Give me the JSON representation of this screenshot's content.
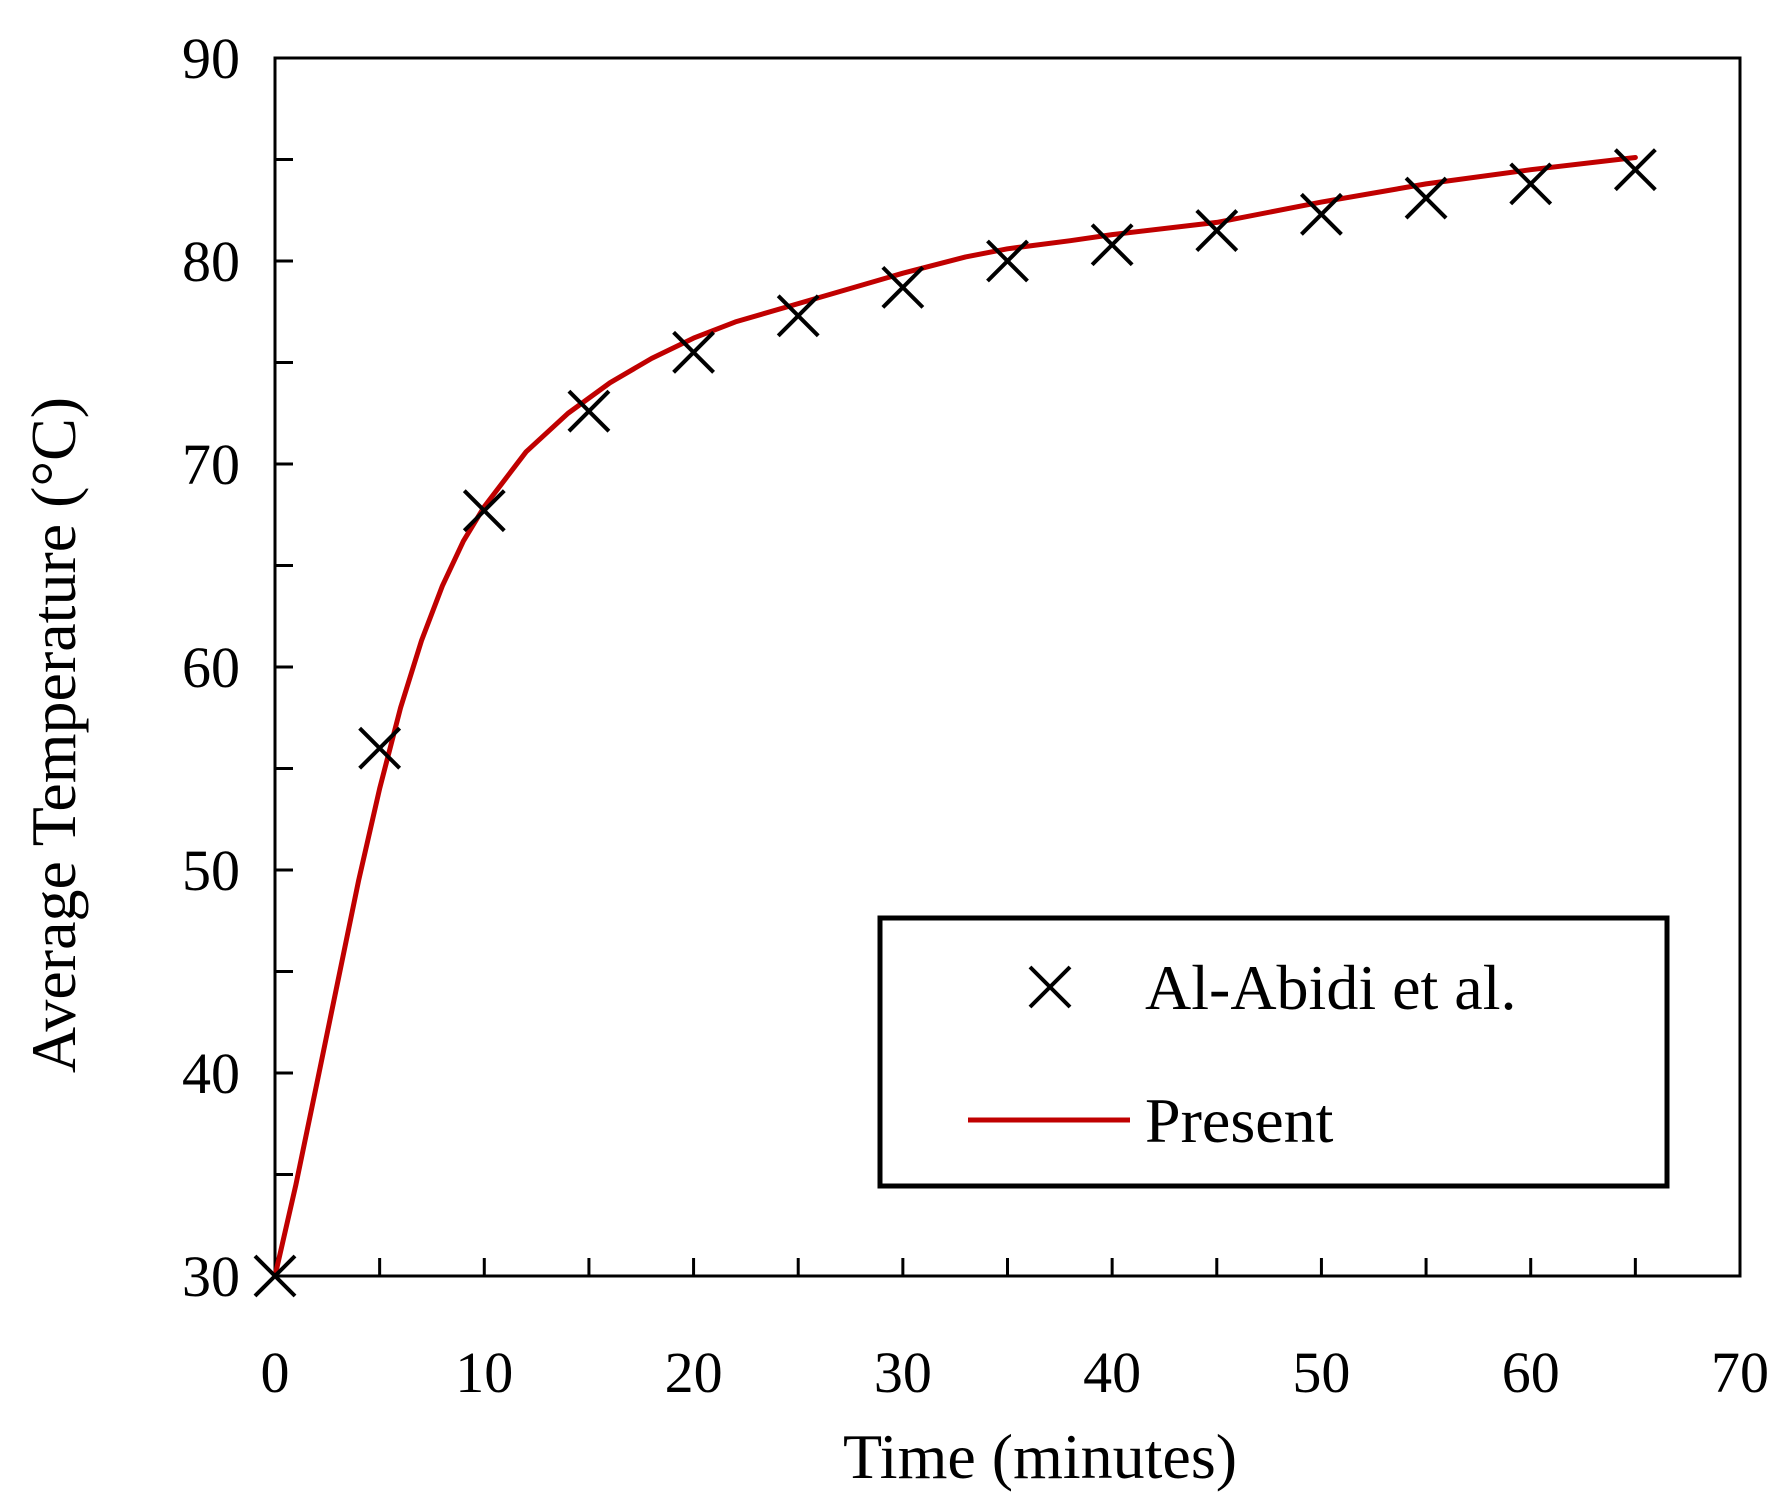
{
  "chart_data": {
    "type": "line",
    "title": "",
    "xlabel": "Time (minutes)",
    "ylabel": "Average Temperature (°C)",
    "xlim": [
      0,
      70
    ],
    "ylim": [
      30,
      90
    ],
    "x_ticks": [
      0,
      10,
      20,
      30,
      40,
      50,
      60,
      70
    ],
    "y_ticks": [
      30,
      40,
      50,
      60,
      70,
      80,
      90
    ],
    "x_tick_labels": [
      "0",
      "10",
      "20",
      "30",
      "40",
      "50",
      "60",
      "70"
    ],
    "y_tick_labels": [
      "30",
      "40",
      "50",
      "60",
      "70",
      "80",
      "90"
    ],
    "grid": false,
    "legend_position": "lower-right",
    "series": [
      {
        "name": "Al-Abidi et al.",
        "style": "marker-x",
        "color": "#000000",
        "x": [
          0,
          5,
          10,
          15,
          20,
          25,
          30,
          35,
          40,
          45,
          50,
          55,
          60,
          65
        ],
        "y": [
          30.0,
          56.0,
          67.7,
          72.6,
          75.5,
          77.3,
          78.7,
          80.0,
          80.8,
          81.5,
          82.3,
          83.1,
          83.8,
          84.5
        ]
      },
      {
        "name": "Present",
        "style": "line",
        "color": "#C00000",
        "x": [
          0,
          1,
          2,
          3,
          4,
          5,
          6,
          7,
          8,
          9,
          10,
          12,
          14,
          16,
          18,
          20,
          22,
          25,
          28,
          30,
          33,
          35,
          38,
          40,
          45,
          50,
          55,
          60,
          65
        ],
        "y": [
          30.0,
          34.5,
          39.5,
          44.5,
          49.5,
          54.0,
          58.0,
          61.3,
          64.0,
          66.2,
          67.9,
          70.6,
          72.5,
          74.0,
          75.2,
          76.2,
          77.0,
          77.9,
          78.8,
          79.4,
          80.2,
          80.6,
          81.0,
          81.3,
          81.9,
          82.9,
          83.8,
          84.5,
          85.1
        ]
      }
    ]
  },
  "legend": {
    "items": [
      {
        "label": "Al-Abidi et al."
      },
      {
        "label": "Present"
      }
    ]
  }
}
